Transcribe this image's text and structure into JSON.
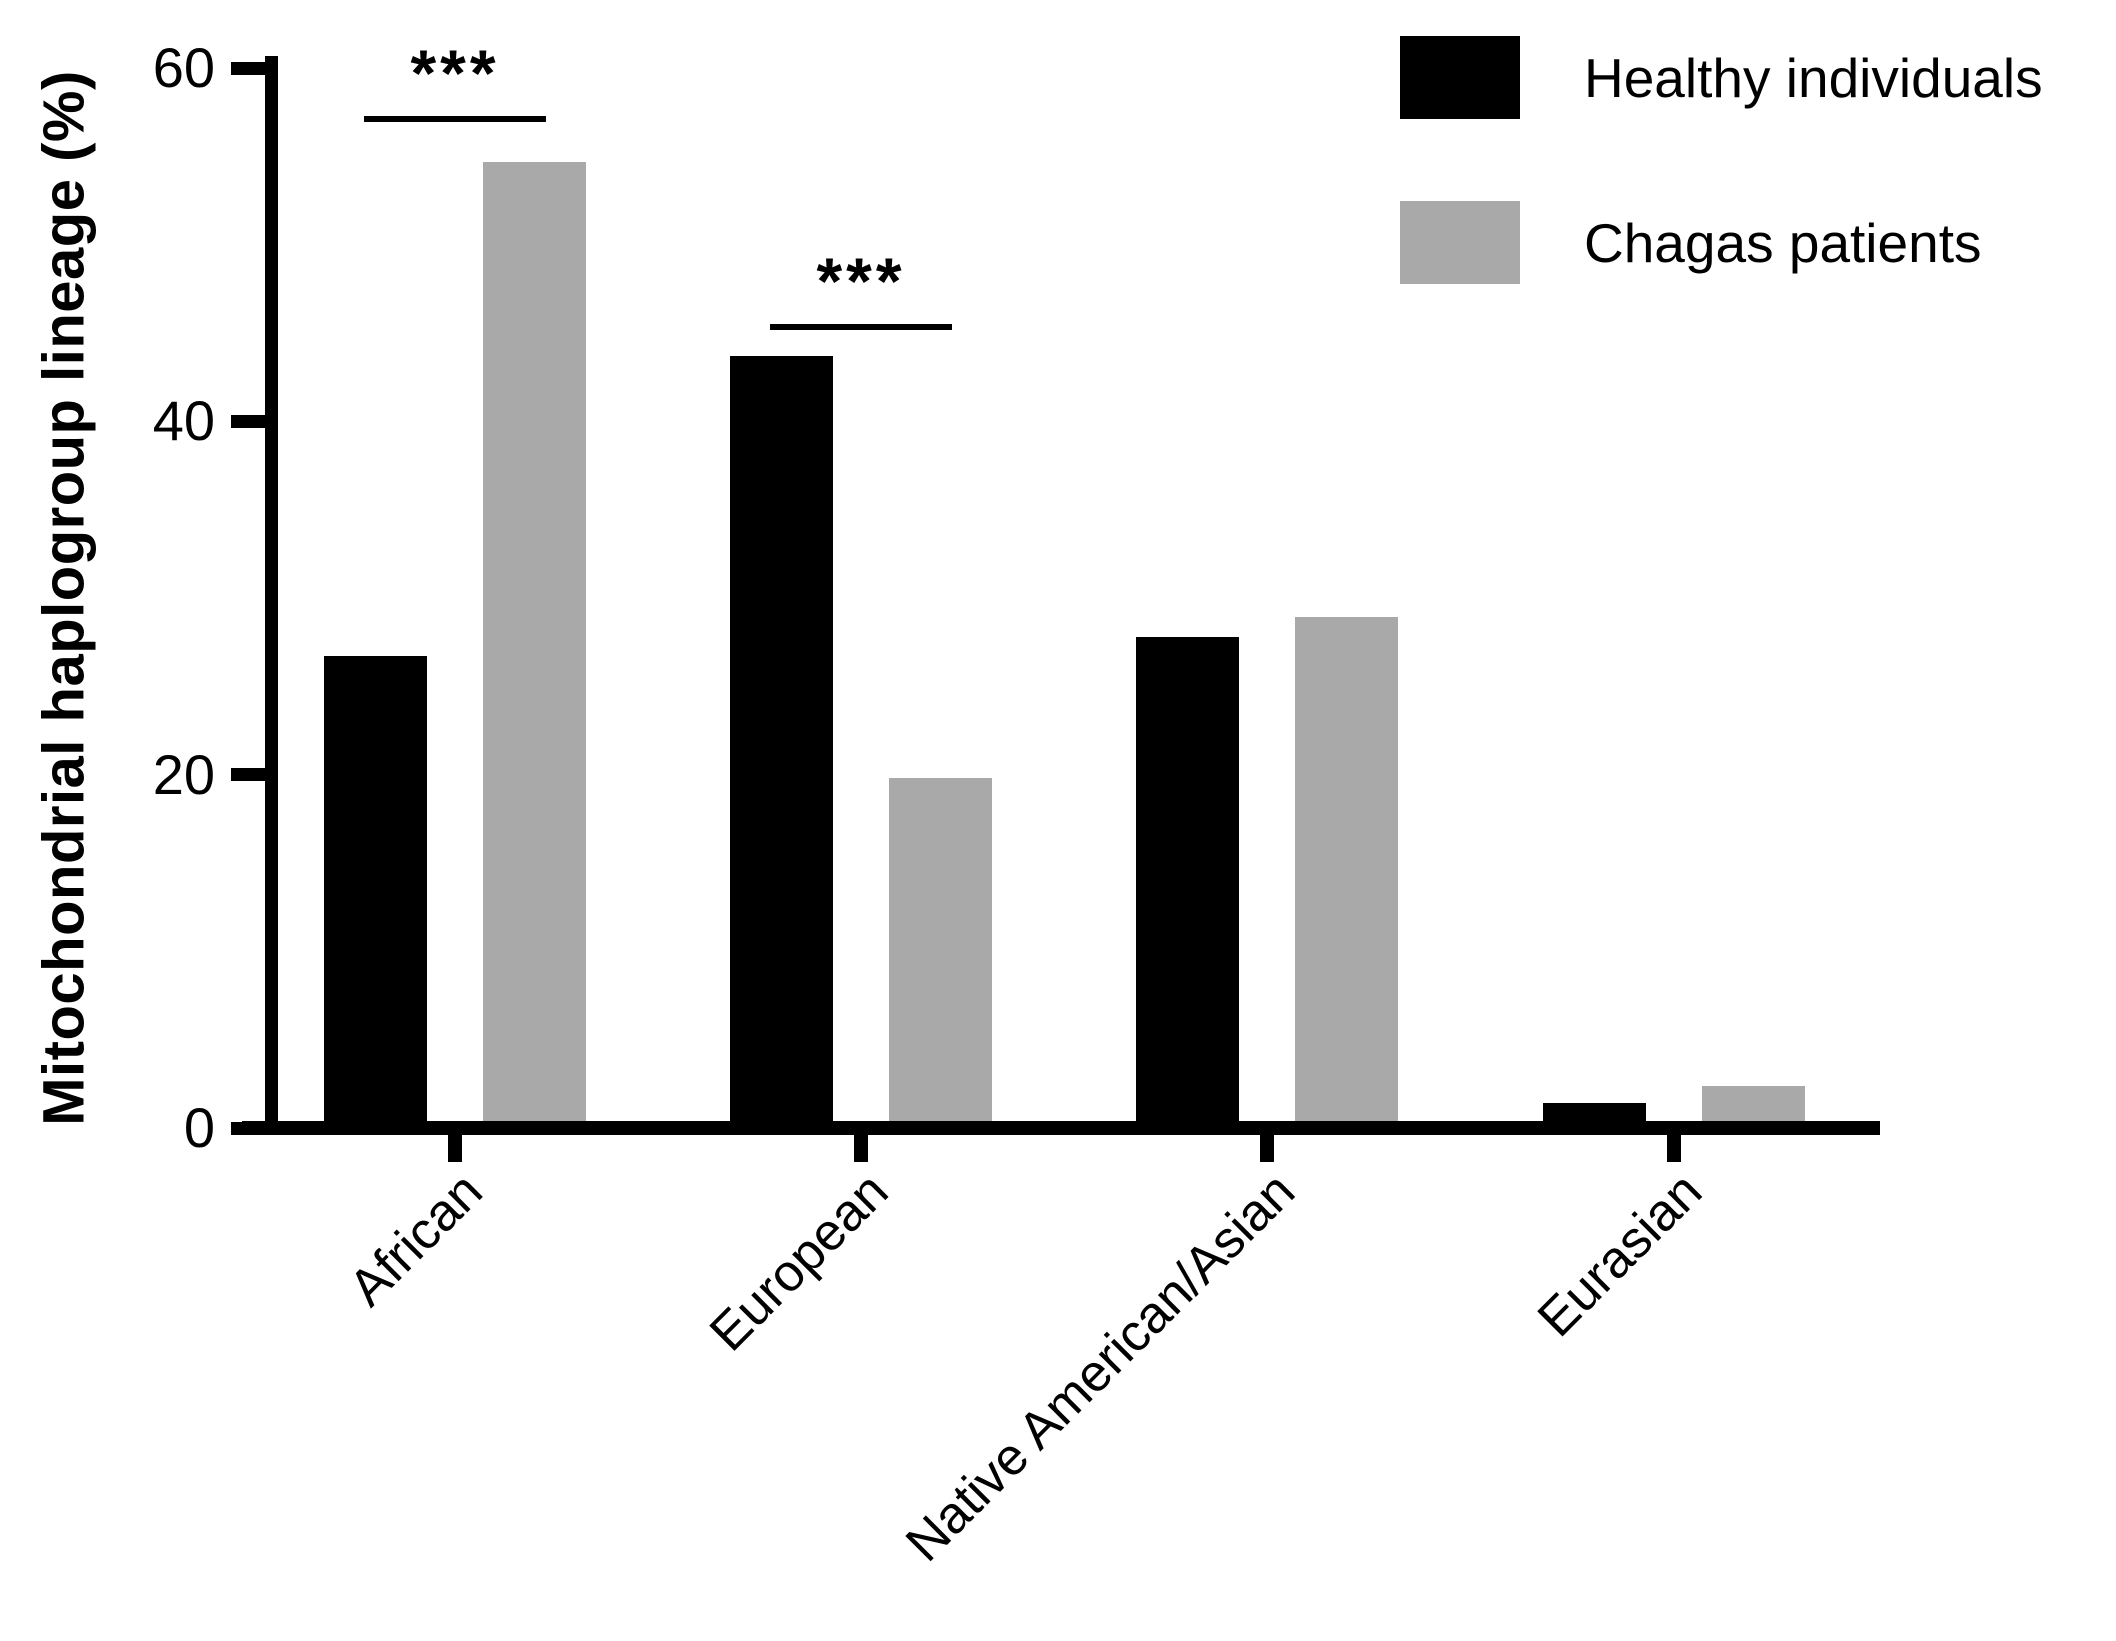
{
  "chart_data": {
    "type": "bar",
    "bar_orientation": "vertical",
    "title": "",
    "xlabel": "",
    "ylabel": "Mitochondrial haplogroup lineage (%)",
    "ylim": [
      0,
      60
    ],
    "yticks": [
      0,
      20,
      40,
      60
    ],
    "grid": false,
    "legend_position": "top-right",
    "axis_color": "#000000",
    "categories": [
      "African",
      "European",
      "Native American/Asian",
      "Eurasian"
    ],
    "series": [
      {
        "name": "Healthy individuals",
        "color": "#000000",
        "values": [
          26.7,
          43.7,
          27.8,
          1.4
        ]
      },
      {
        "name": "Chagas patients",
        "color": "#a9a9a9",
        "values": [
          54.7,
          19.8,
          28.9,
          2.4
        ]
      }
    ],
    "annotations": [
      {
        "category": "African",
        "label": "***",
        "line_y": 57.3
      },
      {
        "category": "European",
        "label": "***",
        "line_y": 45.5
      }
    ]
  }
}
